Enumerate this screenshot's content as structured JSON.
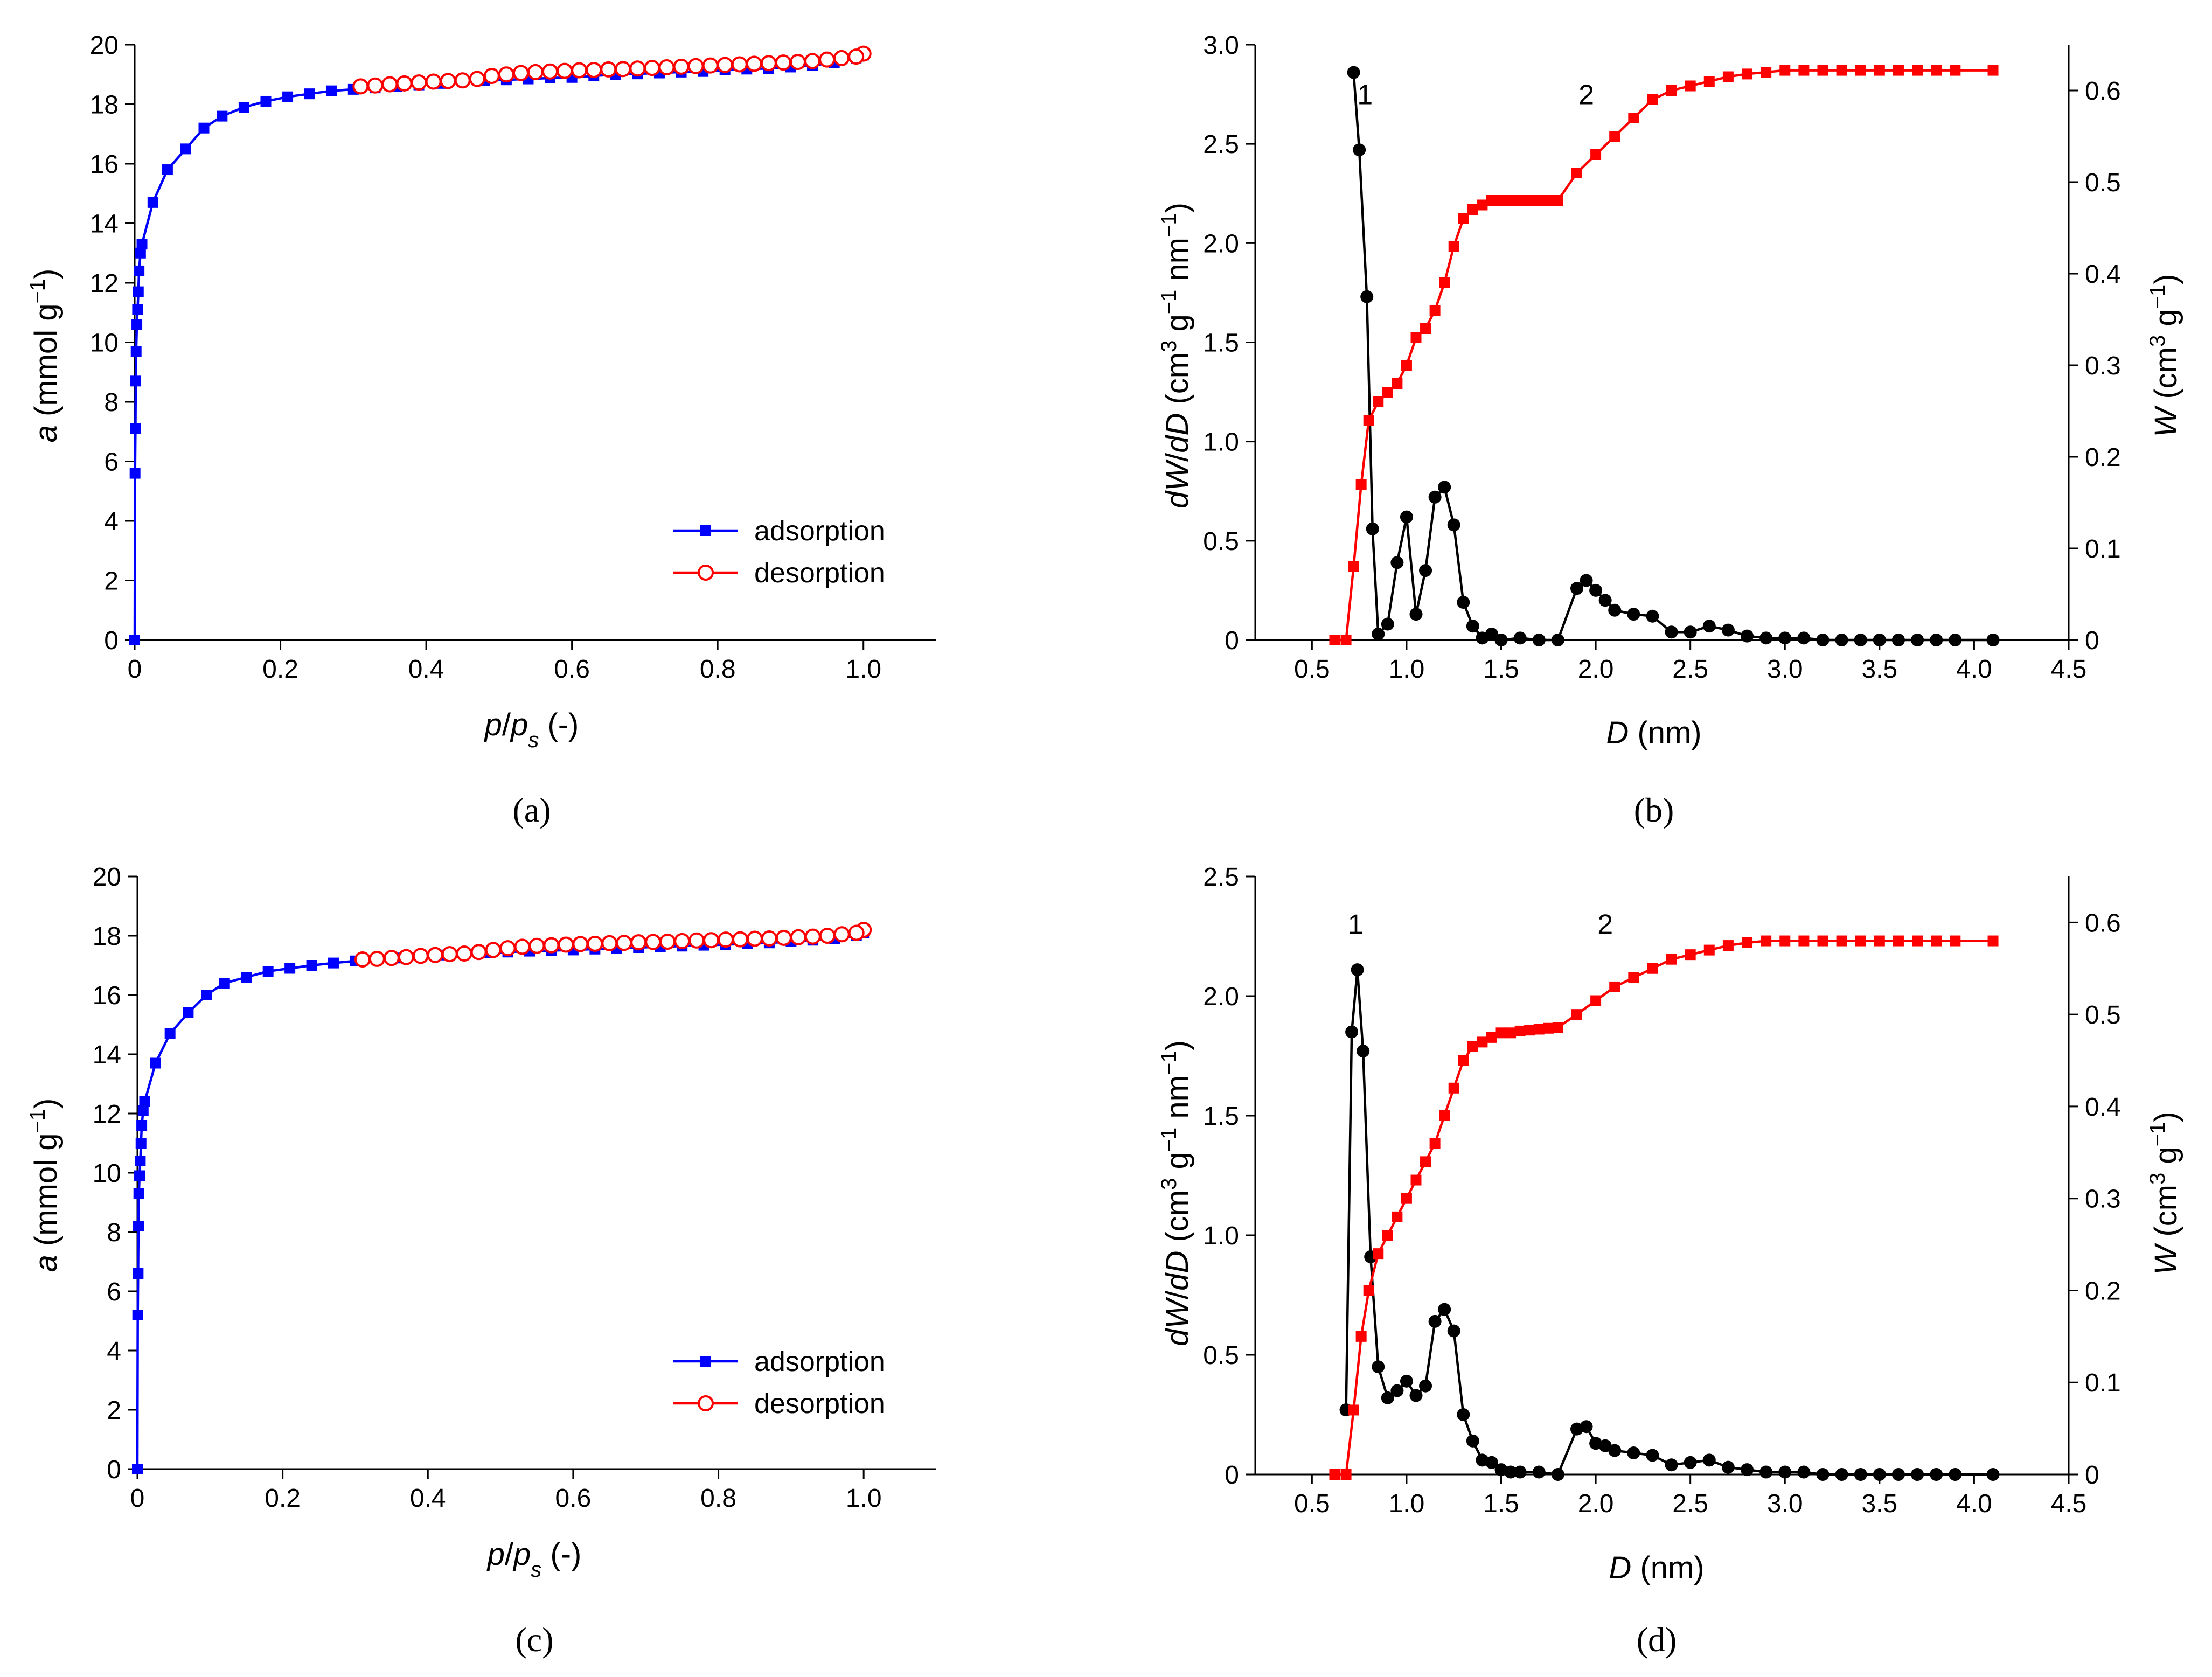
{
  "figure": {
    "captions": [
      "(a)",
      "(b)",
      "(c)",
      "(d)"
    ],
    "colors": {
      "adsorption": "#0000ff",
      "desorption": "#ff0000",
      "psd": "#000000",
      "cumulative": "#ff0000"
    }
  },
  "chart_data": [
    {
      "id": "a",
      "type": "line",
      "caption": "(a)",
      "xlabel": "p/ps (-)",
      "ylabel": "a (mmol g−1)",
      "xlim": [
        0,
        1.1
      ],
      "ylim": [
        0,
        20
      ],
      "xticks": [
        "0",
        "0.2",
        "0.4",
        "0.6",
        "0.8",
        "1.0"
      ],
      "yticks": [
        "0",
        "2",
        "4",
        "6",
        "8",
        "10",
        "12",
        "14",
        "16",
        "18",
        "20"
      ],
      "legend": [
        "adsorption",
        "desorption"
      ],
      "legend_position": "bottom-right",
      "series": [
        {
          "name": "adsorption",
          "marker": "filled-square",
          "x": [
            0.0,
            0.0005,
            0.001,
            0.0015,
            0.002,
            0.003,
            0.004,
            0.005,
            0.006,
            0.008,
            0.01,
            0.025,
            0.045,
            0.07,
            0.095,
            0.12,
            0.15,
            0.18,
            0.21,
            0.24,
            0.27,
            0.3,
            0.33,
            0.36,
            0.39,
            0.42,
            0.45,
            0.48,
            0.51,
            0.54,
            0.57,
            0.6,
            0.63,
            0.66,
            0.69,
            0.72,
            0.75,
            0.78,
            0.81,
            0.84,
            0.87,
            0.9,
            0.93,
            0.96,
            0.99,
            1.0
          ],
          "y": [
            0.0,
            5.6,
            7.1,
            8.7,
            9.7,
            10.6,
            11.1,
            11.7,
            12.4,
            13.0,
            13.3,
            14.7,
            15.8,
            16.5,
            17.2,
            17.6,
            17.9,
            18.1,
            18.25,
            18.35,
            18.45,
            18.5,
            18.55,
            18.6,
            18.65,
            18.7,
            18.75,
            18.8,
            18.82,
            18.85,
            18.88,
            18.9,
            18.95,
            19.0,
            19.02,
            19.05,
            19.08,
            19.1,
            19.15,
            19.18,
            19.2,
            19.25,
            19.3,
            19.4,
            19.55,
            19.65
          ]
        },
        {
          "name": "desorption",
          "marker": "open-circle",
          "x": [
            1.0,
            0.99,
            0.97,
            0.95,
            0.93,
            0.91,
            0.89,
            0.87,
            0.85,
            0.83,
            0.81,
            0.79,
            0.77,
            0.75,
            0.73,
            0.71,
            0.69,
            0.67,
            0.65,
            0.63,
            0.61,
            0.59,
            0.57,
            0.55,
            0.53,
            0.51,
            0.49,
            0.47,
            0.45,
            0.43,
            0.41,
            0.39,
            0.37,
            0.35,
            0.33,
            0.31
          ],
          "y": [
            19.7,
            19.6,
            19.55,
            19.5,
            19.45,
            19.42,
            19.4,
            19.38,
            19.36,
            19.34,
            19.32,
            19.3,
            19.28,
            19.26,
            19.24,
            19.22,
            19.2,
            19.18,
            19.17,
            19.15,
            19.14,
            19.12,
            19.1,
            19.08,
            19.05,
            19.0,
            18.95,
            18.85,
            18.8,
            18.78,
            18.76,
            18.73,
            18.7,
            18.67,
            18.63,
            18.6
          ]
        }
      ]
    },
    {
      "id": "b",
      "type": "line",
      "caption": "(b)",
      "xlabel": "D (nm)",
      "ylabel": "dW/dD (cm3 g−1 nm−1)",
      "y2label": "W (cm3 g−1)",
      "xlim": [
        0.2,
        4.5
      ],
      "ylim": [
        0,
        3.0
      ],
      "y2lim": [
        0,
        0.65
      ],
      "xticks": [
        "0.5",
        "1.0",
        "1.5",
        "2.0",
        "2.5",
        "3.0",
        "3.5",
        "4.0",
        "4.5"
      ],
      "yticks": [
        "0",
        "0.5",
        "1.0",
        "1.5",
        "2.0",
        "2.5",
        "3.0"
      ],
      "y2ticks": [
        "0",
        "0.1",
        "0.2",
        "0.3",
        "0.4",
        "0.5",
        "0.6"
      ],
      "peak_labels": [
        {
          "text": "1",
          "x": 0.78,
          "y": 2.7
        },
        {
          "text": "2",
          "x": 1.95,
          "y": 2.7
        }
      ],
      "series": [
        {
          "name": "dW/dD",
          "axis": "left",
          "marker": "filled-circle",
          "x": [
            0.72,
            0.75,
            0.79,
            0.82,
            0.85,
            0.9,
            0.95,
            1.0,
            1.05,
            1.1,
            1.15,
            1.2,
            1.25,
            1.3,
            1.35,
            1.4,
            1.45,
            1.5,
            1.6,
            1.7,
            1.8,
            1.9,
            1.95,
            2.0,
            2.05,
            2.1,
            2.2,
            2.3,
            2.4,
            2.5,
            2.6,
            2.7,
            2.8,
            2.9,
            3.0,
            3.1,
            3.2,
            3.3,
            3.4,
            3.5,
            3.6,
            3.7,
            3.8,
            3.9,
            4.1
          ],
          "y": [
            2.86,
            2.47,
            1.73,
            0.56,
            0.03,
            0.08,
            0.39,
            0.62,
            0.13,
            0.35,
            0.72,
            0.77,
            0.58,
            0.19,
            0.07,
            0.01,
            0.03,
            0.0,
            0.01,
            0.0,
            0.0,
            0.26,
            0.3,
            0.25,
            0.2,
            0.15,
            0.13,
            0.12,
            0.04,
            0.04,
            0.07,
            0.05,
            0.02,
            0.01,
            0.01,
            0.01,
            0.0,
            0.0,
            0.0,
            0.0,
            0.0,
            0.0,
            0.0,
            0.0,
            0.0
          ]
        },
        {
          "name": "W",
          "axis": "right",
          "marker": "filled-square",
          "x": [
            0.62,
            0.68,
            0.72,
            0.76,
            0.8,
            0.85,
            0.9,
            0.95,
            1.0,
            1.05,
            1.1,
            1.15,
            1.2,
            1.25,
            1.3,
            1.35,
            1.4,
            1.45,
            1.5,
            1.55,
            1.6,
            1.65,
            1.7,
            1.75,
            1.8,
            1.9,
            2.0,
            2.1,
            2.2,
            2.3,
            2.4,
            2.5,
            2.6,
            2.7,
            2.8,
            2.9,
            3.0,
            3.1,
            3.2,
            3.3,
            3.4,
            3.5,
            3.6,
            3.7,
            3.8,
            3.9,
            4.1
          ],
          "y": [
            0.0,
            0.0,
            0.08,
            0.17,
            0.24,
            0.26,
            0.27,
            0.28,
            0.3,
            0.33,
            0.34,
            0.36,
            0.39,
            0.43,
            0.46,
            0.47,
            0.475,
            0.48,
            0.48,
            0.48,
            0.48,
            0.48,
            0.48,
            0.48,
            0.48,
            0.51,
            0.53,
            0.55,
            0.57,
            0.59,
            0.6,
            0.605,
            0.61,
            0.615,
            0.618,
            0.62,
            0.622,
            0.622,
            0.622,
            0.622,
            0.622,
            0.622,
            0.622,
            0.622,
            0.622,
            0.622,
            0.622
          ]
        }
      ]
    },
    {
      "id": "c",
      "type": "line",
      "caption": "(c)",
      "xlabel": "p/ps (-)",
      "ylabel": "a (mmol g−1)",
      "xlim": [
        0,
        1.1
      ],
      "ylim": [
        0,
        20
      ],
      "xticks": [
        "0",
        "0.2",
        "0.4",
        "0.6",
        "0.8",
        "1.0"
      ],
      "yticks": [
        "0",
        "2",
        "4",
        "6",
        "8",
        "10",
        "12",
        "14",
        "16",
        "18",
        "20"
      ],
      "legend": [
        "adsorption",
        "desorption"
      ],
      "legend_position": "bottom-right",
      "series": [
        {
          "name": "adsorption",
          "marker": "filled-square",
          "x": [
            0.0,
            0.0005,
            0.001,
            0.0015,
            0.002,
            0.003,
            0.004,
            0.005,
            0.006,
            0.008,
            0.01,
            0.025,
            0.045,
            0.07,
            0.095,
            0.12,
            0.15,
            0.18,
            0.21,
            0.24,
            0.27,
            0.3,
            0.33,
            0.36,
            0.39,
            0.42,
            0.45,
            0.48,
            0.51,
            0.54,
            0.57,
            0.6,
            0.63,
            0.66,
            0.69,
            0.72,
            0.75,
            0.78,
            0.81,
            0.84,
            0.87,
            0.9,
            0.93,
            0.96,
            0.99,
            1.0
          ],
          "y": [
            0.0,
            5.2,
            6.6,
            8.2,
            9.3,
            9.9,
            10.4,
            11.0,
            11.6,
            12.1,
            12.4,
            13.7,
            14.7,
            15.4,
            16.0,
            16.4,
            16.6,
            16.8,
            16.9,
            17.0,
            17.08,
            17.15,
            17.2,
            17.25,
            17.3,
            17.35,
            17.38,
            17.42,
            17.45,
            17.48,
            17.5,
            17.52,
            17.55,
            17.58,
            17.6,
            17.63,
            17.65,
            17.68,
            17.7,
            17.73,
            17.76,
            17.8,
            17.85,
            17.9,
            18.0,
            18.1
          ]
        },
        {
          "name": "desorption",
          "marker": "open-circle",
          "x": [
            1.0,
            0.99,
            0.97,
            0.95,
            0.93,
            0.91,
            0.89,
            0.87,
            0.85,
            0.83,
            0.81,
            0.79,
            0.77,
            0.75,
            0.73,
            0.71,
            0.69,
            0.67,
            0.65,
            0.63,
            0.61,
            0.59,
            0.57,
            0.55,
            0.53,
            0.51,
            0.49,
            0.47,
            0.45,
            0.43,
            0.41,
            0.39,
            0.37,
            0.35,
            0.33,
            0.31
          ],
          "y": [
            18.2,
            18.1,
            18.05,
            18.0,
            17.97,
            17.95,
            17.93,
            17.91,
            17.9,
            17.88,
            17.87,
            17.85,
            17.84,
            17.82,
            17.8,
            17.79,
            17.78,
            17.76,
            17.75,
            17.73,
            17.72,
            17.7,
            17.68,
            17.66,
            17.63,
            17.58,
            17.52,
            17.45,
            17.4,
            17.38,
            17.35,
            17.32,
            17.28,
            17.25,
            17.22,
            17.2
          ]
        }
      ]
    },
    {
      "id": "d",
      "type": "line",
      "caption": "(d)",
      "xlabel": "D (nm)",
      "ylabel": "dW/dD (cm3 g−1 nm−1)",
      "y2label": "W (cm3 g−1)",
      "xlim": [
        0.2,
        4.5
      ],
      "ylim": [
        0,
        2.5
      ],
      "y2lim": [
        0,
        0.65
      ],
      "xticks": [
        "0.5",
        "1.0",
        "1.5",
        "2.0",
        "2.5",
        "3.0",
        "3.5",
        "4.0",
        "4.5"
      ],
      "yticks": [
        "0",
        "0.5",
        "1.0",
        "1.5",
        "2.0",
        "2.5"
      ],
      "y2ticks": [
        "0",
        "0.1",
        "0.2",
        "0.3",
        "0.4",
        "0.5",
        "0.6"
      ],
      "peak_labels": [
        {
          "text": "1",
          "x": 0.73,
          "y": 2.26
        },
        {
          "text": "2",
          "x": 2.05,
          "y": 2.26
        }
      ],
      "series": [
        {
          "name": "dW/dD",
          "axis": "left",
          "marker": "filled-circle",
          "x": [
            0.68,
            0.71,
            0.74,
            0.77,
            0.81,
            0.85,
            0.9,
            0.95,
            1.0,
            1.05,
            1.1,
            1.15,
            1.2,
            1.25,
            1.3,
            1.35,
            1.4,
            1.45,
            1.5,
            1.55,
            1.6,
            1.7,
            1.8,
            1.9,
            1.95,
            2.0,
            2.05,
            2.1,
            2.2,
            2.3,
            2.4,
            2.5,
            2.6,
            2.7,
            2.8,
            2.9,
            3.0,
            3.1,
            3.2,
            3.3,
            3.4,
            3.5,
            3.6,
            3.7,
            3.8,
            3.9,
            4.1
          ],
          "y": [
            0.27,
            1.85,
            2.11,
            1.77,
            0.91,
            0.45,
            0.32,
            0.35,
            0.39,
            0.33,
            0.37,
            0.64,
            0.69,
            0.6,
            0.25,
            0.14,
            0.06,
            0.05,
            0.02,
            0.01,
            0.01,
            0.01,
            0.0,
            0.19,
            0.2,
            0.13,
            0.12,
            0.1,
            0.09,
            0.08,
            0.04,
            0.05,
            0.06,
            0.03,
            0.02,
            0.01,
            0.01,
            0.01,
            0.0,
            0.0,
            0.0,
            0.0,
            0.0,
            0.0,
            0.0,
            0.0,
            0.0
          ]
        },
        {
          "name": "W",
          "axis": "right",
          "marker": "filled-square",
          "x": [
            0.62,
            0.68,
            0.72,
            0.76,
            0.8,
            0.85,
            0.9,
            0.95,
            1.0,
            1.05,
            1.1,
            1.15,
            1.2,
            1.25,
            1.3,
            1.35,
            1.4,
            1.45,
            1.5,
            1.55,
            1.6,
            1.65,
            1.7,
            1.75,
            1.8,
            1.9,
            2.0,
            2.1,
            2.2,
            2.3,
            2.4,
            2.5,
            2.6,
            2.7,
            2.8,
            2.9,
            3.0,
            3.1,
            3.2,
            3.3,
            3.4,
            3.5,
            3.6,
            3.7,
            3.8,
            3.9,
            4.1
          ],
          "y": [
            0.0,
            0.0,
            0.07,
            0.15,
            0.2,
            0.24,
            0.26,
            0.28,
            0.3,
            0.32,
            0.34,
            0.36,
            0.39,
            0.42,
            0.45,
            0.465,
            0.47,
            0.475,
            0.48,
            0.48,
            0.482,
            0.483,
            0.484,
            0.485,
            0.486,
            0.5,
            0.515,
            0.53,
            0.54,
            0.55,
            0.56,
            0.565,
            0.57,
            0.575,
            0.578,
            0.58,
            0.58,
            0.58,
            0.58,
            0.58,
            0.58,
            0.58,
            0.58,
            0.58,
            0.58,
            0.58,
            0.58
          ]
        }
      ]
    }
  ]
}
